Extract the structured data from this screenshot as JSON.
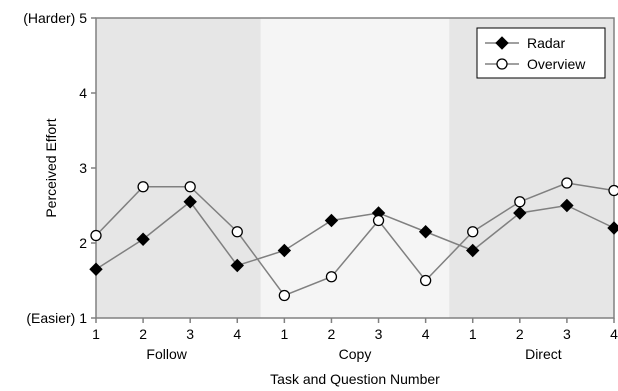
{
  "chart_data": {
    "type": "line",
    "title": "",
    "xlabel": "Task and Question Number",
    "ylabel": "Perceived Effort",
    "ylim": [
      1,
      5
    ],
    "yticks": [
      1,
      2,
      3,
      4,
      5
    ],
    "ytick_labels": [
      "(Easier) 1",
      "2",
      "3",
      "4",
      "(Harder) 5"
    ],
    "x_tick_labels": [
      "1",
      "2",
      "3",
      "4",
      "1",
      "2",
      "3",
      "4",
      "1",
      "2",
      "3",
      "4"
    ],
    "groups": [
      {
        "name": "Follow",
        "shade": "#e6e6e6"
      },
      {
        "name": "Copy",
        "shade": "#f5f5f5"
      },
      {
        "name": "Direct",
        "shade": "#e6e6e6"
      }
    ],
    "grid": false,
    "legend": "top-right",
    "series": [
      {
        "name": "Radar",
        "marker": "diamond",
        "marker_fill": "#000000",
        "values": [
          1.65,
          2.05,
          2.55,
          1.7,
          1.9,
          2.3,
          2.4,
          2.15,
          1.9,
          2.4,
          2.5,
          2.2
        ]
      },
      {
        "name": "Overview",
        "marker": "circle",
        "marker_fill": "#ffffff",
        "values": [
          2.1,
          2.75,
          2.75,
          2.15,
          1.3,
          1.55,
          2.3,
          1.5,
          2.15,
          2.55,
          2.8,
          2.7
        ]
      }
    ],
    "colors": {
      "line": "#808080",
      "axis": "#808080",
      "marker_stroke": "#000000"
    }
  }
}
